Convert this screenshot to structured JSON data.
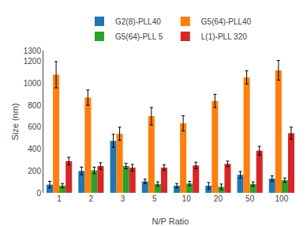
{
  "chart_data": {
    "type": "bar",
    "xlabel": "N/P Ratio",
    "ylabel": "Size (nm)",
    "categories": [
      "1",
      "2",
      "3",
      "5",
      "10",
      "20",
      "50",
      "100"
    ],
    "series": [
      {
        "name": "G2(8)-PLL40",
        "values": [
          75,
          200,
          475,
          105,
          65,
          65,
          165,
          130
        ],
        "errors": [
          30,
          35,
          60,
          20,
          20,
          30,
          30,
          25
        ]
      },
      {
        "name": "G5(64)-PLL40",
        "values": [
          1080,
          870,
          540,
          700,
          635,
          840,
          1055,
          1120
        ],
        "errors": [
          120,
          70,
          60,
          80,
          70,
          60,
          60,
          90
        ]
      },
      {
        "name": "G5(64)-PLL 5",
        "values": [
          65,
          205,
          245,
          80,
          85,
          55,
          80,
          115
        ],
        "errors": [
          20,
          30,
          25,
          20,
          20,
          25,
          20,
          20
        ]
      },
      {
        "name": "L(1)-PLL 320",
        "values": [
          290,
          245,
          230,
          230,
          250,
          265,
          385,
          545
        ],
        "errors": [
          35,
          30,
          30,
          25,
          30,
          25,
          40,
          55
        ]
      }
    ],
    "ylim": [
      0,
      1300
    ],
    "yticks": [
      0,
      200,
      400,
      600,
      800,
      1000,
      1200,
      1300
    ],
    "grid": false,
    "legend": "top"
  }
}
